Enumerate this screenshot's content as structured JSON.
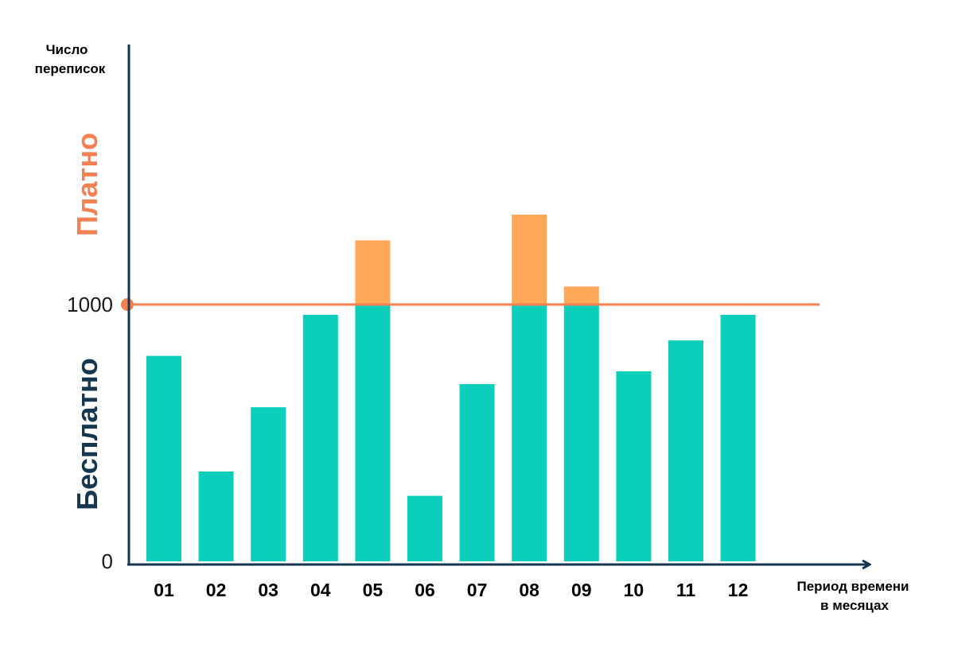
{
  "chart_data": {
    "type": "bar",
    "stacked": true,
    "categories": [
      "01",
      "02",
      "03",
      "04",
      "05",
      "06",
      "07",
      "08",
      "09",
      "10",
      "11",
      "12"
    ],
    "series": [
      {
        "name": "Бесплатно",
        "color": "#0ccfbb",
        "values": [
          800,
          350,
          600,
          960,
          1000,
          255,
          690,
          1000,
          1000,
          740,
          860,
          960
        ]
      },
      {
        "name": "Платно",
        "color": "#ffa857",
        "values": [
          0,
          0,
          0,
          0,
          250,
          0,
          0,
          350,
          70,
          0,
          0,
          0
        ]
      }
    ],
    "threshold": {
      "value": 1000,
      "color": "#f58152"
    },
    "ylabel": "Число переписок",
    "ylabel_lines": [
      "Число",
      "переписок"
    ],
    "xlabel": "Период времени в месяцах",
    "xlabel_lines": [
      "Период времени",
      "в месяцах"
    ],
    "y_ticks": [
      {
        "value": 0,
        "label": "0"
      },
      {
        "value": 1000,
        "label": "1000"
      }
    ],
    "band_labels": {
      "paid": "Платно",
      "free": "Бесплатно"
    },
    "ylim": [
      0,
      2000
    ],
    "grid": false,
    "legend": "none",
    "colors": {
      "axis": "#15374f",
      "text": "#000000",
      "tick_y": "#1a1a1a"
    }
  }
}
